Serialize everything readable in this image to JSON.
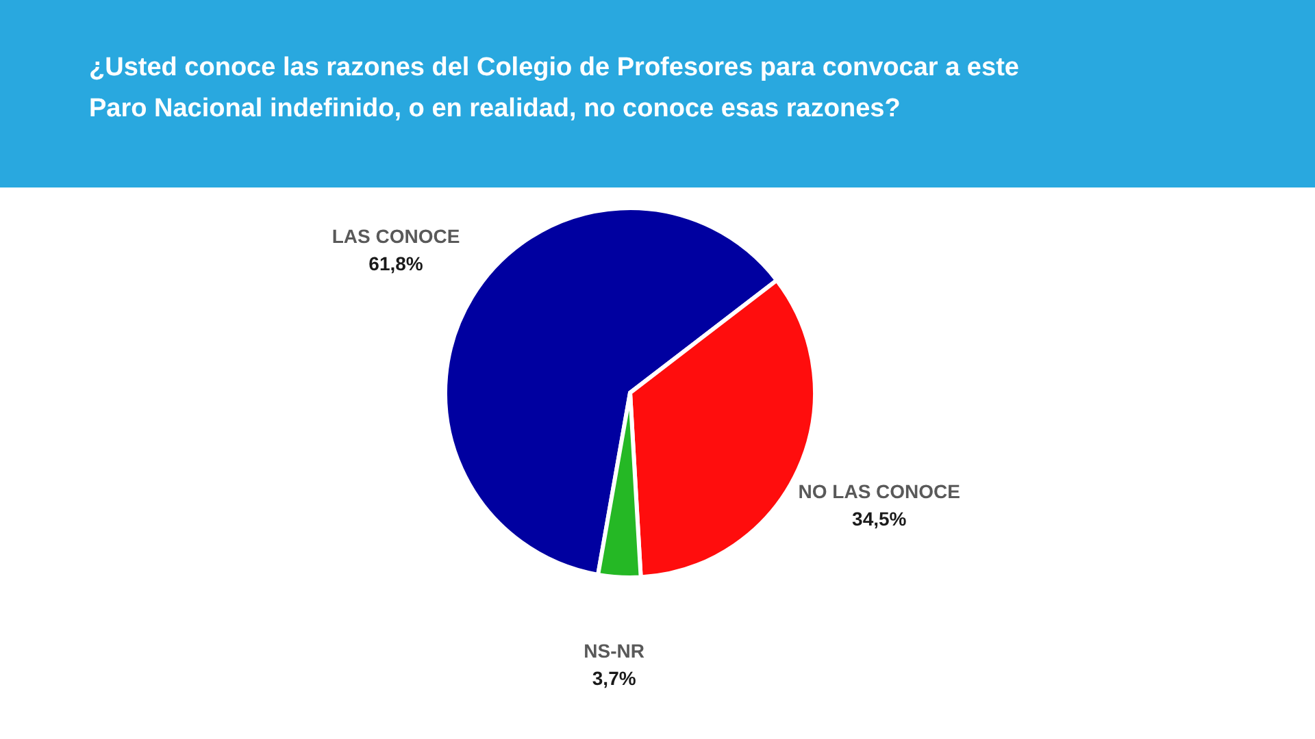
{
  "chart_data": {
    "type": "pie",
    "title": "¿Usted conoce las razones del Colegio de Profesores para convocar a este Paro Nacional indefinido, o en realidad, no conoce esas razones?",
    "categories": [
      "LAS CONOCE",
      "NO LAS CONOCE",
      "NS-NR"
    ],
    "values": [
      61.8,
      34.5,
      3.7
    ],
    "colors": [
      "#0000a0",
      "#ff0d0d",
      "#25b825"
    ],
    "value_labels": [
      "61,8%",
      "34,5%",
      "3,7%"
    ],
    "legend": false
  }
}
